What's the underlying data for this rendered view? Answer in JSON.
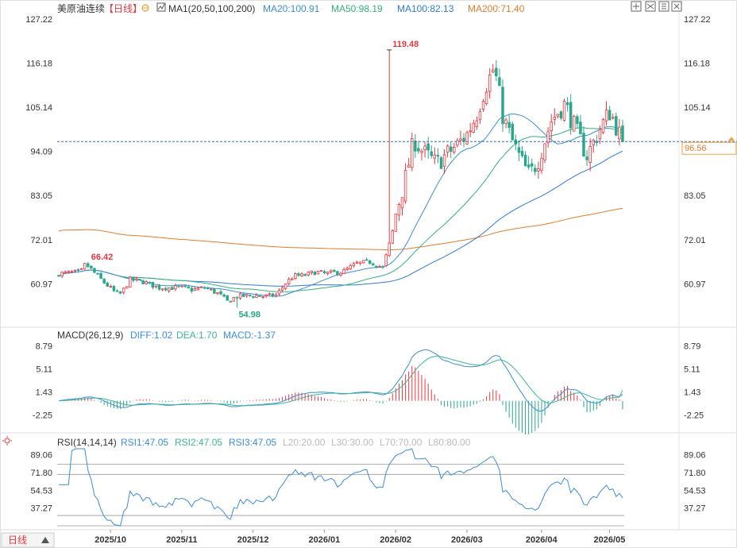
{
  "header": {
    "symbol": "美原油连续",
    "period": "【日线】",
    "ma_label": "MA1(20,50,100,200)",
    "ma20": "MA20:100.91",
    "ma50": "MA50:98.19",
    "ma100": "MA100:82.13",
    "ma200": "MA200:71.40"
  },
  "macd_header": {
    "label": "MACD(26,12,9)",
    "diff": "DIFF:1.02",
    "dea": "DEA:1.70",
    "macd": "MACD:-1.37"
  },
  "rsi_header": {
    "label": "RSI(14,14,14)",
    "rsi1": "RSI1:47.05",
    "rsi2": "RSI2:47.05",
    "rsi3": "RSI3:47.05",
    "l20": "L20:20.00",
    "l30": "L30:30.00",
    "l70": "L70:70.00",
    "l80": "L80:80.00"
  },
  "footer": {
    "period_button": "日线"
  },
  "colors": {
    "up": "#e8373e",
    "down": "#27a88a",
    "ma20": "#3a8ddb",
    "ma50": "#33b07a",
    "ma100": "#2c7bd6",
    "ma200": "#e27c2c",
    "macd_diff": "#3a8ddb",
    "macd_dea": "#3cb59a",
    "rsi": "#3a8ddb",
    "last_price_bg": "#f39c3c"
  },
  "chart_data": {
    "type": "candlestick",
    "title": "美原油连续 日线",
    "price_axis_ticks": [
      "127.22",
      "116.18",
      "105.14",
      "94.09",
      "83.05",
      "72.01",
      "60.97"
    ],
    "price_range": [
      52.5,
      128.0
    ],
    "x_labels": [
      "2025/10",
      "2025/11",
      "2025/12",
      "2026/01",
      "2026/02",
      "2026/03",
      "2026/04",
      "2026/05"
    ],
    "last_price": "96.56",
    "annotations": {
      "high": "119.48",
      "low": "54.98",
      "marker": "66.42"
    },
    "moving_averages": {
      "MA20": 100.91,
      "MA50": 98.19,
      "MA100": 82.13,
      "MA200": 71.4
    },
    "macd": {
      "axis_ticks": [
        "8.79",
        "5.11",
        "1.43",
        "-2.25"
      ],
      "range": [
        -4.5,
        9.5
      ],
      "DIFF": 1.02,
      "DEA": 1.7,
      "MACD": -1.37
    },
    "rsi": {
      "axis_ticks": [
        "89.06",
        "71.80",
        "54.53",
        "37.27"
      ],
      "range": [
        20,
        95
      ],
      "levels": [
        20,
        30,
        70,
        80
      ],
      "RSI1": 47.05,
      "RSI2": 47.05,
      "RSI3": 47.05
    }
  }
}
